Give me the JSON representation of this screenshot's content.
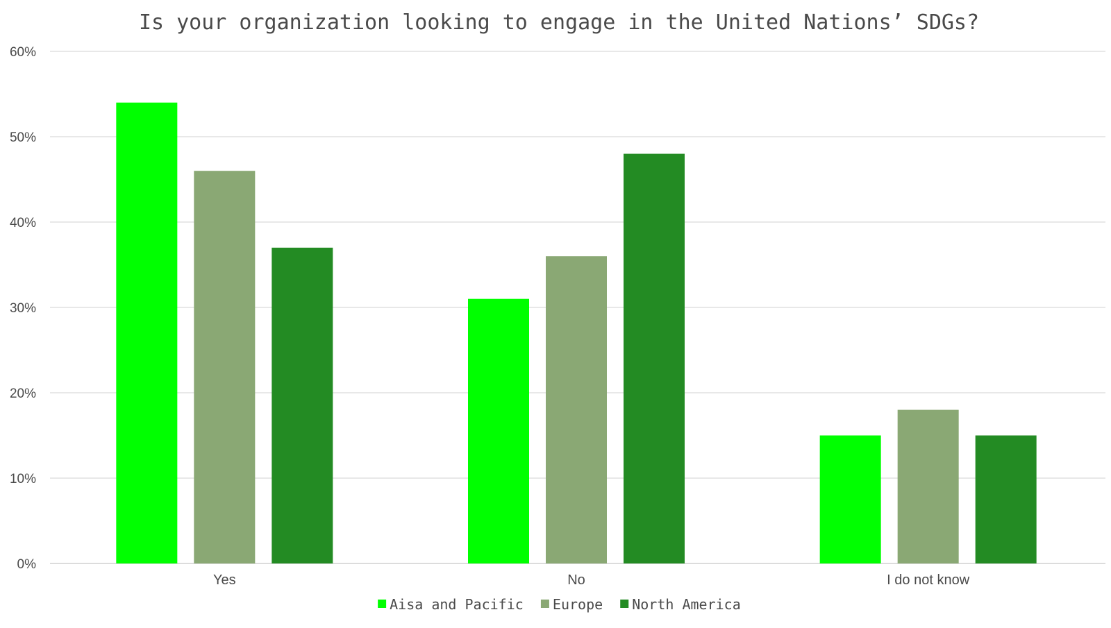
{
  "chart_data": {
    "type": "bar",
    "title": "Is your organization looking to engage in the United Nations’ SDGs?",
    "xlabel": "",
    "ylabel": "",
    "categories": [
      "Yes",
      "No",
      "I do not know"
    ],
    "series": [
      {
        "name": "Aisa and Pacific",
        "color": "#00ff00",
        "values": [
          54,
          31,
          15
        ]
      },
      {
        "name": "Europe",
        "color": "#8aa874",
        "values": [
          46,
          36,
          18
        ]
      },
      {
        "name": "North America",
        "color": "#238b23",
        "values": [
          37,
          48,
          15
        ]
      }
    ],
    "ylim": [
      0,
      60
    ],
    "yticks": [
      0,
      10,
      20,
      30,
      40,
      50,
      60
    ],
    "ytick_labels": [
      "0%",
      "10%",
      "20%",
      "30%",
      "40%",
      "50%",
      "60%"
    ],
    "grid": true,
    "legend_position": "bottom-center",
    "gridline_color": "#d9d9d9"
  }
}
